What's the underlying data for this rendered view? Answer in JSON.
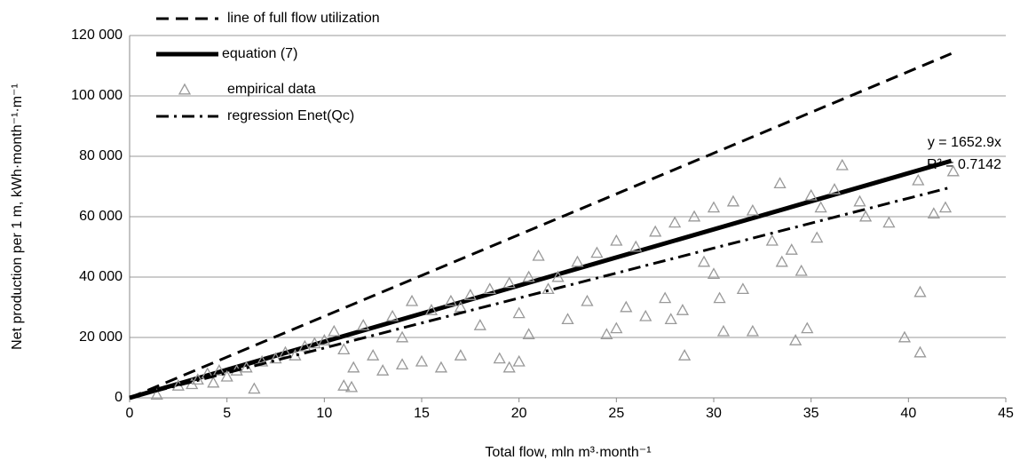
{
  "chart_data": {
    "type": "scatter",
    "xlabel": "Total flow, mln m³·month⁻¹",
    "ylabel": "Net production per 1 m, kWh·month⁻¹·m⁻¹",
    "xlim": [
      0,
      45
    ],
    "xticks": [
      0,
      5,
      10,
      15,
      20,
      25,
      30,
      35,
      40,
      45
    ],
    "ylim": [
      0,
      120000
    ],
    "yticks": [
      {
        "value": 0,
        "label": "0"
      },
      {
        "value": 20000,
        "label": "20 000"
      },
      {
        "value": 40000,
        "label": "40 000"
      },
      {
        "value": 60000,
        "label": "60 000"
      },
      {
        "value": 80000,
        "label": "80 000"
      },
      {
        "value": 100000,
        "label": "100 000"
      },
      {
        "value": 120000,
        "label": "120 000"
      }
    ],
    "grid": true,
    "legend": "top-left",
    "annotations": [
      "y = 1652.9x",
      "R² = 0.7142"
    ],
    "series": [
      {
        "name": "line of full flow utilization",
        "style": "dashed",
        "color": "#000000",
        "x": [
          0,
          42.2
        ],
        "values": [
          0,
          114000
        ]
      },
      {
        "name": "equation (7)",
        "style": "solid",
        "color": "#000000",
        "x": [
          0,
          42.2
        ],
        "values": [
          0,
          78500
        ]
      },
      {
        "name": "empirical data",
        "style": "markers",
        "color": "#999999",
        "x": [
          1.4,
          2.5,
          3.2,
          3.5,
          4,
          4.3,
          4.6,
          5,
          5.5,
          6,
          6.4,
          6.8,
          7.5,
          8,
          8.5,
          9,
          9.5,
          10,
          10.5,
          11,
          11,
          11.4,
          11.5,
          12,
          12.5,
          13,
          13.5,
          14,
          14,
          14.5,
          15,
          15.5,
          16,
          16.5,
          17,
          17,
          17.5,
          18,
          18.5,
          19,
          19.5,
          19.5,
          20,
          20,
          20.5,
          20.5,
          21,
          21.5,
          22,
          22.5,
          23,
          23.5,
          24,
          24.5,
          25,
          25,
          25.5,
          26,
          26.5,
          27,
          27.5,
          27.8,
          28,
          28.4,
          28.5,
          29,
          29.5,
          30,
          30,
          30.3,
          30.5,
          31,
          31.5,
          32,
          32,
          33,
          33.4,
          33.5,
          34,
          34.2,
          34.5,
          34.8,
          35,
          35.3,
          35.5,
          36.2,
          36.6,
          37.5,
          37.8,
          39,
          39.8,
          40.5,
          40.6,
          40.6,
          41.3,
          41.9,
          42.3
        ],
        "values": [
          1000,
          4000,
          4500,
          6000,
          8000,
          5000,
          9000,
          7000,
          9000,
          10000,
          3000,
          12000,
          13000,
          15000,
          14000,
          17000,
          18000,
          19000,
          22000,
          16000,
          4000,
          3500,
          10000,
          24000,
          14000,
          9000,
          27000,
          20000,
          11000,
          32000,
          12000,
          29000,
          10000,
          32000,
          14000,
          30000,
          34000,
          24000,
          36000,
          13000,
          10000,
          38000,
          12000,
          28000,
          40000,
          21000,
          47000,
          36000,
          40000,
          26000,
          45000,
          32000,
          48000,
          21000,
          52000,
          23000,
          30000,
          50000,
          27000,
          55000,
          33000,
          26000,
          58000,
          29000,
          14000,
          60000,
          45000,
          63000,
          41000,
          33000,
          22000,
          65000,
          36000,
          22000,
          62000,
          52000,
          71000,
          45000,
          49000,
          19000,
          42000,
          23000,
          67000,
          53000,
          63000,
          69000,
          77000,
          65000,
          60000,
          58000,
          20000,
          72000,
          35000,
          15000,
          61000,
          63000,
          75000
        ]
      },
      {
        "name": "regression Enet(Qc)",
        "style": "dashdot",
        "color": "#000000",
        "x": [
          0,
          42.2
        ],
        "values": [
          0,
          69750
        ]
      }
    ]
  }
}
